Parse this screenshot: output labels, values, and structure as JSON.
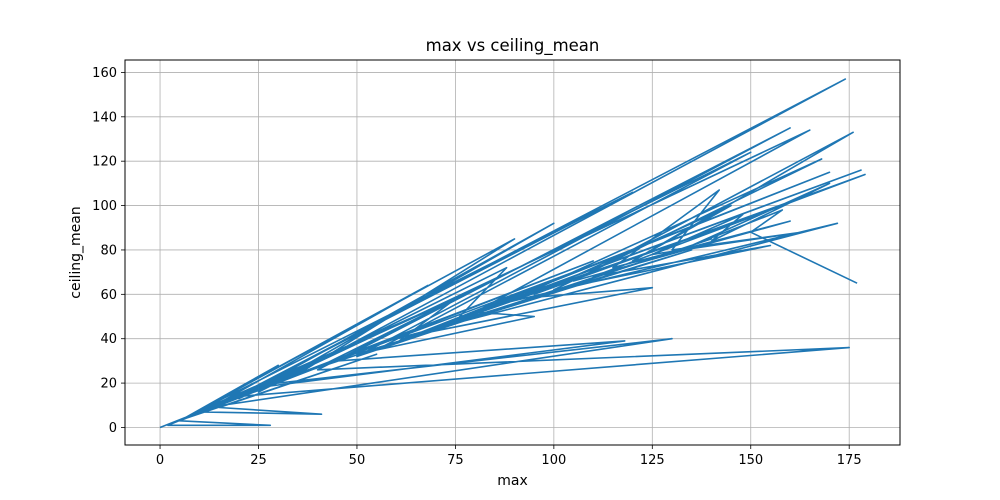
{
  "chart_data": {
    "type": "line",
    "title": "max vs ceiling_mean",
    "xlabel": "max",
    "ylabel": "ceiling_mean",
    "xlim": [
      -8.9,
      187.9
    ],
    "ylim": [
      -7.9,
      165.6
    ],
    "xticks": [
      0,
      25,
      50,
      75,
      100,
      125,
      150,
      175
    ],
    "yticks": [
      0,
      20,
      40,
      60,
      80,
      100,
      120,
      140,
      160
    ],
    "grid": true,
    "line_color": "#1f77b4",
    "series": [
      {
        "x": [
          0,
          20,
          2,
          28,
          5,
          30,
          10,
          41,
          15,
          55,
          3,
          35,
          8,
          68,
          12,
          60,
          20,
          100,
          25,
          45,
          7,
          120,
          15,
          174,
          30,
          130,
          12,
          80,
          40,
          175,
          20,
          110,
          5,
          90,
          35,
          140,
          50,
          160,
          45,
          118,
          25,
          75,
          60,
          170,
          55,
          150,
          40,
          105,
          65,
          178,
          70,
          135,
          50,
          95,
          80,
          165,
          30,
          88,
          75,
          152,
          85,
          172,
          60,
          125,
          90,
          168,
          100,
          155,
          110,
          179,
          95,
          145,
          120,
          176,
          105,
          160,
          115,
          142,
          130,
          163,
          125,
          148,
          140,
          170,
          135,
          158,
          150,
          177
        ],
        "y": [
          0,
          14,
          1,
          1,
          3,
          28,
          7,
          6,
          9,
          33,
          2,
          25,
          6,
          64,
          8,
          46,
          13,
          92,
          16,
          34,
          5,
          106,
          10,
          157,
          20,
          40,
          9,
          62,
          26,
          36,
          14,
          75,
          3,
          85,
          24,
          85,
          32,
          135,
          30,
          39,
          18,
          58,
          38,
          115,
          35,
          124,
          27,
          70,
          42,
          116,
          45,
          80,
          33,
          50,
          52,
          134,
          21,
          72,
          48,
          96,
          55,
          92,
          40,
          63,
          58,
          121,
          62,
          82,
          68,
          114,
          60,
          100,
          75,
          133,
          66,
          93,
          72,
          107,
          80,
          88,
          78,
          96,
          84,
          110,
          82,
          98,
          88,
          65
        ]
      }
    ]
  }
}
